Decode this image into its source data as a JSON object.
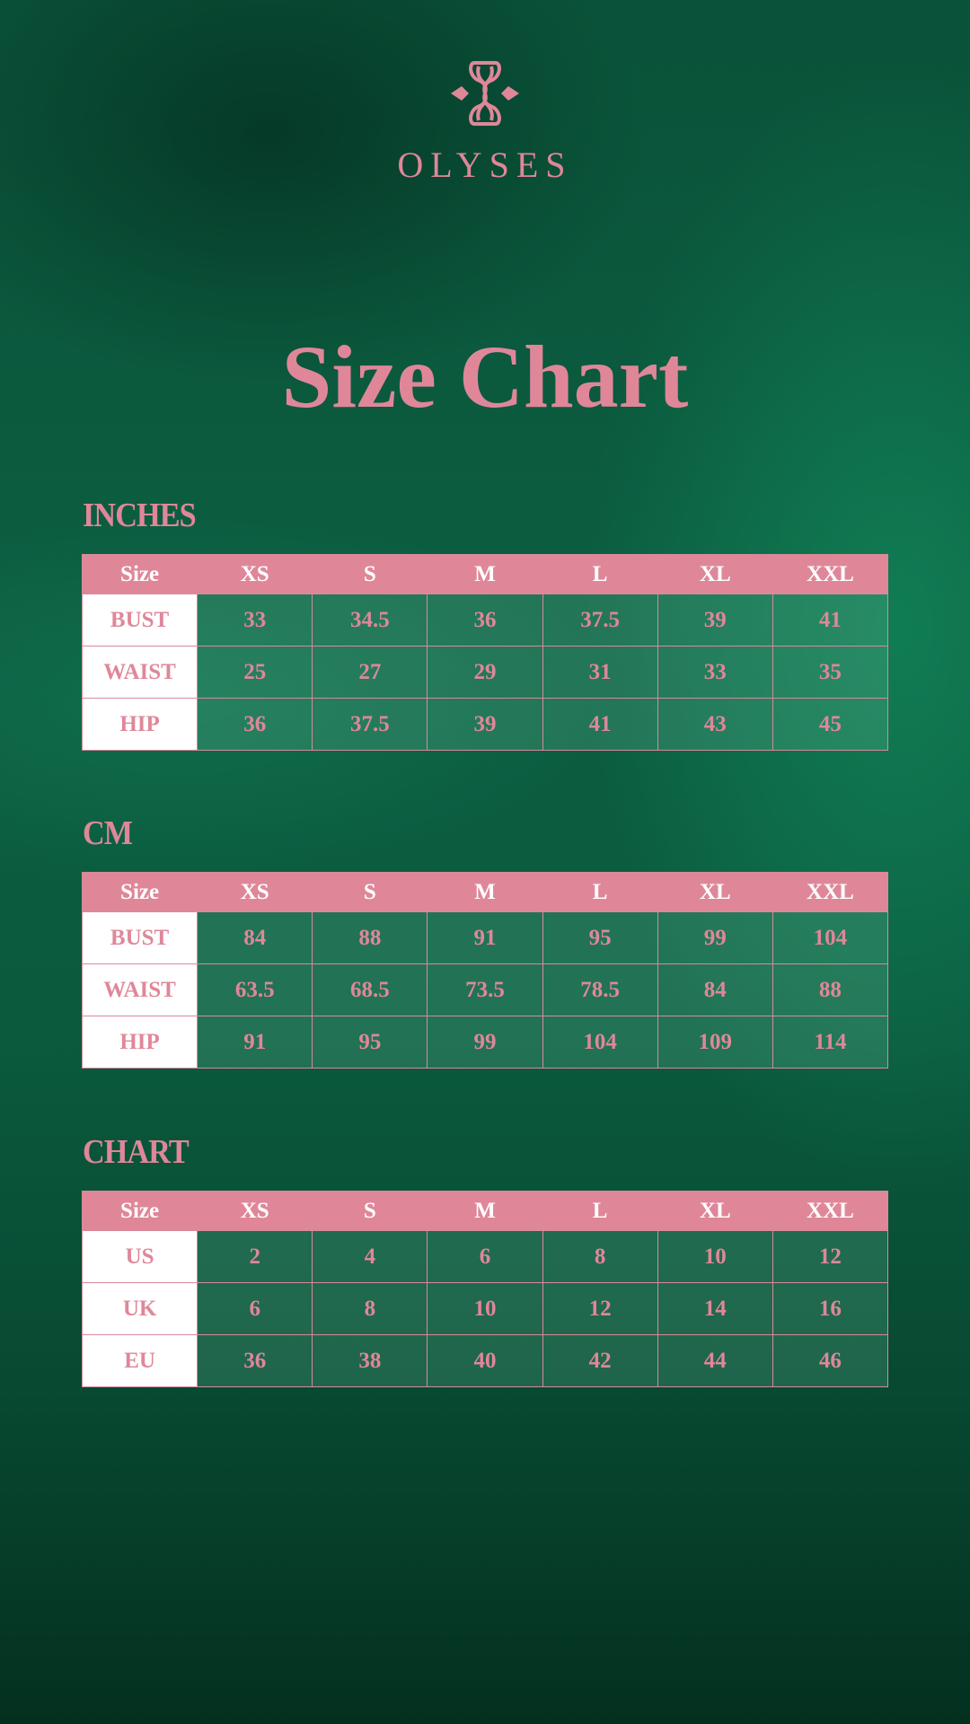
{
  "brand": {
    "name": "OLYSES",
    "logo_icon": "double-b-monogram-icon"
  },
  "title": "Size Chart",
  "colors": {
    "accent": "#df8799",
    "background": "#0b5a3e",
    "label_cell": "#ffffff"
  },
  "sections": [
    {
      "label": "INCHES",
      "header": [
        "Size",
        "XS",
        "S",
        "M",
        "L",
        "XL",
        "XXL"
      ],
      "rows": [
        {
          "label": "BUST",
          "values": [
            "33",
            "34.5",
            "36",
            "37.5",
            "39",
            "41"
          ]
        },
        {
          "label": "WAIST",
          "values": [
            "25",
            "27",
            "29",
            "31",
            "33",
            "35"
          ]
        },
        {
          "label": "HIP",
          "values": [
            "36",
            "37.5",
            "39",
            "41",
            "43",
            "45"
          ]
        }
      ]
    },
    {
      "label": "CM",
      "header": [
        "Size",
        "XS",
        "S",
        "M",
        "L",
        "XL",
        "XXL"
      ],
      "rows": [
        {
          "label": "BUST",
          "values": [
            "84",
            "88",
            "91",
            "95",
            "99",
            "104"
          ]
        },
        {
          "label": "WAIST",
          "values": [
            "63.5",
            "68.5",
            "73.5",
            "78.5",
            "84",
            "88"
          ]
        },
        {
          "label": "HIP",
          "values": [
            "91",
            "95",
            "99",
            "104",
            "109",
            "114"
          ]
        }
      ]
    },
    {
      "label": "CHART",
      "header": [
        "Size",
        "XS",
        "S",
        "M",
        "L",
        "XL",
        "XXL"
      ],
      "rows": [
        {
          "label": "US",
          "values": [
            "2",
            "4",
            "6",
            "8",
            "10",
            "12"
          ]
        },
        {
          "label": "UK",
          "values": [
            "6",
            "8",
            "10",
            "12",
            "14",
            "16"
          ]
        },
        {
          "label": "EU",
          "values": [
            "36",
            "38",
            "40",
            "42",
            "44",
            "46"
          ]
        }
      ]
    }
  ]
}
